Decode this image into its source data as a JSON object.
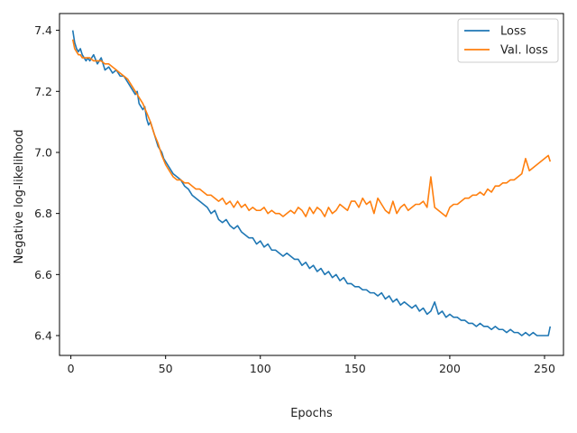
{
  "chart_data": {
    "type": "line",
    "xlabel": "Epochs",
    "ylabel": "Negative log-likelihood",
    "xlim": [
      -6,
      260
    ],
    "ylim": [
      6.335,
      7.455
    ],
    "xticks": [
      0,
      50,
      100,
      150,
      200,
      250
    ],
    "yticks": [
      6.4,
      6.6,
      6.8,
      7.0,
      7.2,
      7.4
    ],
    "ytick_labels": [
      "6.4",
      "6.6",
      "6.8",
      "7.0",
      "7.2",
      "7.4"
    ],
    "grid": false,
    "legend_position": "top-right",
    "series": [
      {
        "name": "Loss",
        "color": "#1f77b4",
        "x": [
          1,
          2,
          3,
          4,
          5,
          6,
          7,
          8,
          9,
          10,
          12,
          14,
          16,
          18,
          20,
          22,
          24,
          26,
          28,
          30,
          32,
          34,
          35,
          36,
          37,
          38,
          39,
          40,
          41,
          42,
          43,
          44,
          45,
          46,
          47,
          48,
          49,
          50,
          52,
          54,
          56,
          58,
          60,
          62,
          64,
          66,
          68,
          70,
          72,
          74,
          76,
          78,
          80,
          82,
          84,
          86,
          88,
          90,
          92,
          94,
          96,
          98,
          100,
          102,
          104,
          106,
          108,
          110,
          112,
          114,
          116,
          118,
          120,
          122,
          124,
          126,
          128,
          130,
          132,
          134,
          136,
          138,
          140,
          142,
          144,
          146,
          148,
          150,
          152,
          154,
          156,
          158,
          160,
          162,
          164,
          166,
          168,
          170,
          172,
          174,
          176,
          178,
          180,
          182,
          184,
          186,
          188,
          190,
          192,
          194,
          196,
          198,
          200,
          202,
          204,
          206,
          208,
          210,
          212,
          214,
          216,
          218,
          220,
          222,
          224,
          226,
          228,
          230,
          232,
          234,
          236,
          238,
          240,
          242,
          244,
          246,
          248,
          250,
          252,
          253
        ],
        "y": [
          7.4,
          7.36,
          7.34,
          7.33,
          7.34,
          7.32,
          7.31,
          7.3,
          7.31,
          7.3,
          7.32,
          7.29,
          7.31,
          7.27,
          7.28,
          7.26,
          7.27,
          7.25,
          7.25,
          7.23,
          7.21,
          7.19,
          7.2,
          7.16,
          7.15,
          7.14,
          7.15,
          7.11,
          7.09,
          7.1,
          7.08,
          7.06,
          7.04,
          7.02,
          7.01,
          7.0,
          6.98,
          6.97,
          6.95,
          6.93,
          6.92,
          6.91,
          6.89,
          6.88,
          6.86,
          6.85,
          6.84,
          6.83,
          6.82,
          6.8,
          6.81,
          6.78,
          6.77,
          6.78,
          6.76,
          6.75,
          6.76,
          6.74,
          6.73,
          6.72,
          6.72,
          6.7,
          6.71,
          6.69,
          6.7,
          6.68,
          6.68,
          6.67,
          6.66,
          6.67,
          6.66,
          6.65,
          6.65,
          6.63,
          6.64,
          6.62,
          6.63,
          6.61,
          6.62,
          6.6,
          6.61,
          6.59,
          6.6,
          6.58,
          6.59,
          6.57,
          6.57,
          6.56,
          6.56,
          6.55,
          6.55,
          6.54,
          6.54,
          6.53,
          6.54,
          6.52,
          6.53,
          6.51,
          6.52,
          6.5,
          6.51,
          6.5,
          6.49,
          6.5,
          6.48,
          6.49,
          6.47,
          6.48,
          6.51,
          6.47,
          6.48,
          6.46,
          6.47,
          6.46,
          6.46,
          6.45,
          6.45,
          6.44,
          6.44,
          6.43,
          6.44,
          6.43,
          6.43,
          6.42,
          6.43,
          6.42,
          6.42,
          6.41,
          6.42,
          6.41,
          6.41,
          6.4,
          6.41,
          6.4,
          6.41,
          6.4,
          6.4,
          6.4,
          6.4,
          6.43
        ]
      },
      {
        "name": "Val. loss",
        "color": "#ff7f0e",
        "x": [
          1,
          2,
          3,
          4,
          5,
          6,
          8,
          10,
          12,
          14,
          16,
          18,
          20,
          22,
          24,
          26,
          28,
          30,
          32,
          34,
          36,
          38,
          40,
          42,
          44,
          46,
          48,
          50,
          52,
          54,
          56,
          58,
          60,
          62,
          64,
          66,
          68,
          70,
          72,
          74,
          76,
          78,
          80,
          82,
          84,
          86,
          88,
          90,
          92,
          94,
          96,
          98,
          100,
          102,
          104,
          106,
          108,
          110,
          112,
          114,
          116,
          118,
          120,
          122,
          124,
          126,
          128,
          130,
          132,
          134,
          136,
          138,
          140,
          142,
          144,
          146,
          148,
          150,
          152,
          154,
          156,
          158,
          160,
          162,
          164,
          166,
          168,
          170,
          172,
          174,
          176,
          178,
          180,
          182,
          184,
          186,
          188,
          190,
          192,
          194,
          196,
          198,
          200,
          202,
          204,
          206,
          208,
          210,
          212,
          214,
          216,
          218,
          220,
          222,
          224,
          226,
          228,
          230,
          232,
          234,
          236,
          238,
          240,
          242,
          244,
          246,
          248,
          250,
          252,
          253
        ],
        "y": [
          7.37,
          7.34,
          7.33,
          7.32,
          7.32,
          7.31,
          7.31,
          7.31,
          7.3,
          7.3,
          7.3,
          7.29,
          7.29,
          7.28,
          7.27,
          7.26,
          7.25,
          7.24,
          7.22,
          7.2,
          7.18,
          7.16,
          7.13,
          7.1,
          7.06,
          7.03,
          6.99,
          6.96,
          6.94,
          6.92,
          6.91,
          6.91,
          6.9,
          6.9,
          6.89,
          6.88,
          6.88,
          6.87,
          6.86,
          6.86,
          6.85,
          6.84,
          6.85,
          6.83,
          6.84,
          6.82,
          6.84,
          6.82,
          6.83,
          6.81,
          6.82,
          6.81,
          6.81,
          6.82,
          6.8,
          6.81,
          6.8,
          6.8,
          6.79,
          6.8,
          6.81,
          6.8,
          6.82,
          6.81,
          6.79,
          6.82,
          6.8,
          6.82,
          6.81,
          6.79,
          6.82,
          6.8,
          6.81,
          6.83,
          6.82,
          6.81,
          6.84,
          6.84,
          6.82,
          6.85,
          6.83,
          6.84,
          6.8,
          6.85,
          6.83,
          6.81,
          6.8,
          6.84,
          6.8,
          6.82,
          6.83,
          6.81,
          6.82,
          6.83,
          6.83,
          6.84,
          6.82,
          6.92,
          6.82,
          6.81,
          6.8,
          6.79,
          6.82,
          6.83,
          6.83,
          6.84,
          6.85,
          6.85,
          6.86,
          6.86,
          6.87,
          6.86,
          6.88,
          6.87,
          6.89,
          6.89,
          6.9,
          6.9,
          6.91,
          6.91,
          6.92,
          6.93,
          6.98,
          6.94,
          6.95,
          6.96,
          6.97,
          6.98,
          6.99,
          6.97
        ]
      }
    ]
  }
}
